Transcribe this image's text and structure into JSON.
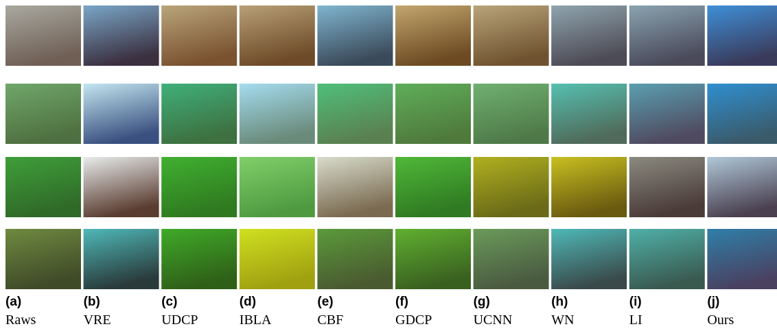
{
  "columns": [
    {
      "letter": "(a)",
      "name": "Raws"
    },
    {
      "letter": "(b)",
      "name": "VRE"
    },
    {
      "letter": "(c)",
      "name": "UDCP"
    },
    {
      "letter": "(d)",
      "name": "IBLA"
    },
    {
      "letter": "(e)",
      "name": "CBF"
    },
    {
      "letter": "(f)",
      "name": "GDCP"
    },
    {
      "letter": "(g)",
      "name": "UCNN"
    },
    {
      "letter": "(h)",
      "name": "WN"
    },
    {
      "letter": "(i)",
      "name": "LI"
    },
    {
      "letter": "(j)",
      "name": "Ours"
    }
  ]
}
